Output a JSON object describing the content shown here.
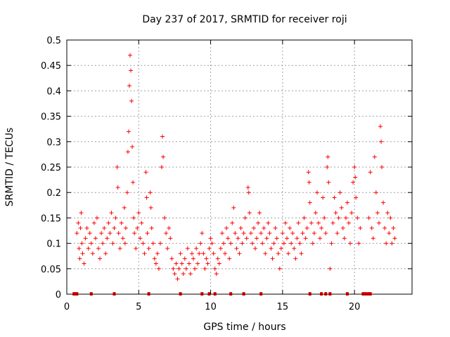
{
  "chart_data": {
    "type": "scatter",
    "title": "Day 237 of 2017, SRMTID for receiver roji",
    "xlabel": "GPS time / hours",
    "ylabel": "SRMTID / TECUs",
    "xlim": [
      0,
      24
    ],
    "ylim": [
      0,
      0.5
    ],
    "grid": true,
    "marker": "+",
    "color": "#ff0000",
    "x_ticks": [
      {
        "value": 0,
        "label": "0"
      },
      {
        "value": 5,
        "label": "5"
      },
      {
        "value": 10,
        "label": "10"
      },
      {
        "value": 15,
        "label": "15"
      },
      {
        "value": 20,
        "label": "20"
      }
    ],
    "y_ticks": [
      {
        "value": 0,
        "label": "0"
      },
      {
        "value": 0.05,
        "label": "0.05"
      },
      {
        "value": 0.1,
        "label": "0.1"
      },
      {
        "value": 0.15,
        "label": "0.15"
      },
      {
        "value": 0.2,
        "label": "0.2"
      },
      {
        "value": 0.25,
        "label": "0.25"
      },
      {
        "value": 0.3,
        "label": "0.3"
      },
      {
        "value": 0.35,
        "label": "0.35"
      },
      {
        "value": 0.4,
        "label": "0.4"
      },
      {
        "value": 0.45,
        "label": "0.45"
      },
      {
        "value": 0.5,
        "label": "0.5"
      }
    ],
    "series": [
      {
        "name": "SRMTID",
        "points": [
          [
            0.7,
            0.12
          ],
          [
            0.8,
            0.14
          ],
          [
            0.85,
            0.09
          ],
          [
            0.9,
            0.07
          ],
          [
            0.95,
            0.13
          ],
          [
            1.0,
            0.16
          ],
          [
            1.05,
            0.1
          ],
          [
            1.1,
            0.08
          ],
          [
            1.2,
            0.06
          ],
          [
            1.3,
            0.11
          ],
          [
            1.4,
            0.13
          ],
          [
            1.5,
            0.09
          ],
          [
            1.6,
            0.12
          ],
          [
            1.7,
            0.1
          ],
          [
            1.8,
            0.08
          ],
          [
            1.9,
            0.14
          ],
          [
            2.0,
            0.11
          ],
          [
            2.1,
            0.15
          ],
          [
            2.2,
            0.09
          ],
          [
            2.3,
            0.07
          ],
          [
            2.4,
            0.12
          ],
          [
            2.5,
            0.1
          ],
          [
            2.6,
            0.13
          ],
          [
            2.7,
            0.08
          ],
          [
            2.8,
            0.11
          ],
          [
            2.9,
            0.14
          ],
          [
            3.0,
            0.12
          ],
          [
            3.1,
            0.16
          ],
          [
            3.2,
            0.1
          ],
          [
            3.3,
            0.13
          ],
          [
            3.4,
            0.15
          ],
          [
            3.5,
            0.25
          ],
          [
            3.55,
            0.21
          ],
          [
            3.6,
            0.12
          ],
          [
            3.7,
            0.09
          ],
          [
            3.8,
            0.14
          ],
          [
            3.9,
            0.11
          ],
          [
            4.0,
            0.17
          ],
          [
            4.05,
            0.1
          ],
          [
            4.1,
            0.13
          ],
          [
            4.2,
            0.2
          ],
          [
            4.25,
            0.28
          ],
          [
            4.3,
            0.32
          ],
          [
            4.35,
            0.41
          ],
          [
            4.4,
            0.47
          ],
          [
            4.45,
            0.44
          ],
          [
            4.5,
            0.38
          ],
          [
            4.55,
            0.29
          ],
          [
            4.6,
            0.22
          ],
          [
            4.65,
            0.15
          ],
          [
            4.7,
            0.12
          ],
          [
            4.8,
            0.09
          ],
          [
            4.9,
            0.13
          ],
          [
            5.0,
            0.16
          ],
          [
            5.1,
            0.11
          ],
          [
            5.2,
            0.14
          ],
          [
            5.3,
            0.1
          ],
          [
            5.4,
            0.08
          ],
          [
            5.5,
            0.24
          ],
          [
            5.55,
            0.19
          ],
          [
            5.6,
            0.12
          ],
          [
            5.7,
            0.09
          ],
          [
            5.8,
            0.2
          ],
          [
            5.85,
            0.17
          ],
          [
            5.9,
            0.13
          ],
          [
            6.0,
            0.1
          ],
          [
            6.1,
            0.07
          ],
          [
            6.2,
            0.06
          ],
          [
            6.3,
            0.08
          ],
          [
            6.4,
            0.05
          ],
          [
            6.5,
            0.1
          ],
          [
            6.6,
            0.25
          ],
          [
            6.65,
            0.31
          ],
          [
            6.7,
            0.27
          ],
          [
            6.8,
            0.15
          ],
          [
            6.9,
            0.12
          ],
          [
            7.0,
            0.09
          ],
          [
            7.1,
            0.13
          ],
          [
            7.2,
            0.11
          ],
          [
            7.3,
            0.07
          ],
          [
            7.4,
            0.05
          ],
          [
            7.5,
            0.04
          ],
          [
            7.6,
            0.06
          ],
          [
            7.7,
            0.03
          ],
          [
            7.8,
            0.05
          ],
          [
            7.9,
            0.08
          ],
          [
            8.0,
            0.06
          ],
          [
            8.1,
            0.04
          ],
          [
            8.2,
            0.07
          ],
          [
            8.3,
            0.05
          ],
          [
            8.4,
            0.09
          ],
          [
            8.5,
            0.06
          ],
          [
            8.6,
            0.04
          ],
          [
            8.7,
            0.08
          ],
          [
            8.8,
            0.07
          ],
          [
            8.9,
            0.05
          ],
          [
            9.0,
            0.09
          ],
          [
            9.1,
            0.06
          ],
          [
            9.2,
            0.08
          ],
          [
            9.3,
            0.1
          ],
          [
            9.4,
            0.12
          ],
          [
            9.5,
            0.08
          ],
          [
            9.6,
            0.05
          ],
          [
            9.7,
            0.07
          ],
          [
            9.8,
            0.06
          ],
          [
            9.9,
            0.09
          ],
          [
            10.0,
            0.11
          ],
          [
            10.1,
            0.1
          ],
          [
            10.2,
            0.08
          ],
          [
            10.3,
            0.05
          ],
          [
            10.4,
            0.04
          ],
          [
            10.5,
            0.07
          ],
          [
            10.6,
            0.06
          ],
          [
            10.7,
            0.09
          ],
          [
            10.8,
            0.12
          ],
          [
            10.9,
            0.1
          ],
          [
            11.0,
            0.08
          ],
          [
            11.1,
            0.13
          ],
          [
            11.2,
            0.11
          ],
          [
            11.3,
            0.07
          ],
          [
            11.4,
            0.1
          ],
          [
            11.5,
            0.14
          ],
          [
            11.6,
            0.17
          ],
          [
            11.7,
            0.12
          ],
          [
            11.8,
            0.09
          ],
          [
            11.9,
            0.11
          ],
          [
            12.0,
            0.08
          ],
          [
            12.1,
            0.13
          ],
          [
            12.2,
            0.1
          ],
          [
            12.3,
            0.12
          ],
          [
            12.4,
            0.15
          ],
          [
            12.5,
            0.11
          ],
          [
            12.6,
            0.21
          ],
          [
            12.65,
            0.2
          ],
          [
            12.7,
            0.16
          ],
          [
            12.8,
            0.12
          ],
          [
            12.9,
            0.1
          ],
          [
            13.0,
            0.13
          ],
          [
            13.1,
            0.09
          ],
          [
            13.2,
            0.11
          ],
          [
            13.3,
            0.14
          ],
          [
            13.4,
            0.16
          ],
          [
            13.5,
            0.12
          ],
          [
            13.6,
            0.1
          ],
          [
            13.7,
            0.13
          ],
          [
            13.8,
            0.08
          ],
          [
            13.9,
            0.11
          ],
          [
            14.0,
            0.14
          ],
          [
            14.1,
            0.12
          ],
          [
            14.2,
            0.09
          ],
          [
            14.3,
            0.07
          ],
          [
            14.4,
            0.1
          ],
          [
            14.5,
            0.13
          ],
          [
            14.6,
            0.11
          ],
          [
            14.7,
            0.08
          ],
          [
            14.8,
            0.05
          ],
          [
            14.9,
            0.09
          ],
          [
            15.0,
            0.12
          ],
          [
            15.1,
            0.1
          ],
          [
            15.2,
            0.14
          ],
          [
            15.3,
            0.11
          ],
          [
            15.4,
            0.08
          ],
          [
            15.5,
            0.13
          ],
          [
            15.6,
            0.1
          ],
          [
            15.7,
            0.12
          ],
          [
            15.8,
            0.09
          ],
          [
            15.9,
            0.07
          ],
          [
            16.0,
            0.11
          ],
          [
            16.1,
            0.14
          ],
          [
            16.2,
            0.1
          ],
          [
            16.3,
            0.08
          ],
          [
            16.4,
            0.12
          ],
          [
            16.5,
            0.15
          ],
          [
            16.6,
            0.11
          ],
          [
            16.7,
            0.13
          ],
          [
            16.8,
            0.24
          ],
          [
            16.85,
            0.22
          ],
          [
            16.9,
            0.18
          ],
          [
            17.0,
            0.14
          ],
          [
            17.1,
            0.1
          ],
          [
            17.2,
            0.12
          ],
          [
            17.3,
            0.16
          ],
          [
            17.4,
            0.2
          ],
          [
            17.5,
            0.14
          ],
          [
            17.6,
            0.11
          ],
          [
            17.7,
            0.13
          ],
          [
            17.8,
            0.19
          ],
          [
            17.9,
            0.15
          ],
          [
            18.0,
            0.12
          ],
          [
            18.1,
            0.25
          ],
          [
            18.15,
            0.27
          ],
          [
            18.2,
            0.22
          ],
          [
            18.3,
            0.05
          ],
          [
            18.4,
            0.1
          ],
          [
            18.5,
            0.14
          ],
          [
            18.6,
            0.19
          ],
          [
            18.7,
            0.16
          ],
          [
            18.8,
            0.12
          ],
          [
            18.9,
            0.15
          ],
          [
            19.0,
            0.2
          ],
          [
            19.1,
            0.17
          ],
          [
            19.2,
            0.13
          ],
          [
            19.3,
            0.11
          ],
          [
            19.4,
            0.15
          ],
          [
            19.5,
            0.18
          ],
          [
            19.6,
            0.14
          ],
          [
            19.7,
            0.1
          ],
          [
            19.8,
            0.16
          ],
          [
            19.9,
            0.22
          ],
          [
            20.0,
            0.25
          ],
          [
            20.05,
            0.23
          ],
          [
            20.1,
            0.19
          ],
          [
            20.2,
            0.15
          ],
          [
            20.3,
            0.1
          ],
          [
            20.4,
            0.13
          ],
          [
            21.0,
            0.15
          ],
          [
            21.1,
            0.24
          ],
          [
            21.2,
            0.13
          ],
          [
            21.3,
            0.11
          ],
          [
            21.4,
            0.27
          ],
          [
            21.5,
            0.2
          ],
          [
            21.6,
            0.16
          ],
          [
            21.7,
            0.14
          ],
          [
            21.8,
            0.33
          ],
          [
            21.85,
            0.3
          ],
          [
            21.9,
            0.25
          ],
          [
            22.0,
            0.18
          ],
          [
            22.1,
            0.13
          ],
          [
            22.2,
            0.1
          ],
          [
            22.3,
            0.16
          ],
          [
            22.4,
            0.12
          ],
          [
            22.5,
            0.15
          ],
          [
            22.6,
            0.1
          ],
          [
            22.7,
            0.13
          ],
          [
            22.8,
            0.11
          ]
        ]
      }
    ],
    "gap_markers_x": [
      0.5,
      0.6,
      0.7,
      1.7,
      3.3,
      5.7,
      7.9,
      9.4,
      9.9,
      10.3,
      11.4,
      12.3,
      13.5,
      16.9,
      17.7,
      18.0,
      18.3,
      19.5,
      20.6,
      20.8,
      21.0,
      21.1
    ]
  }
}
